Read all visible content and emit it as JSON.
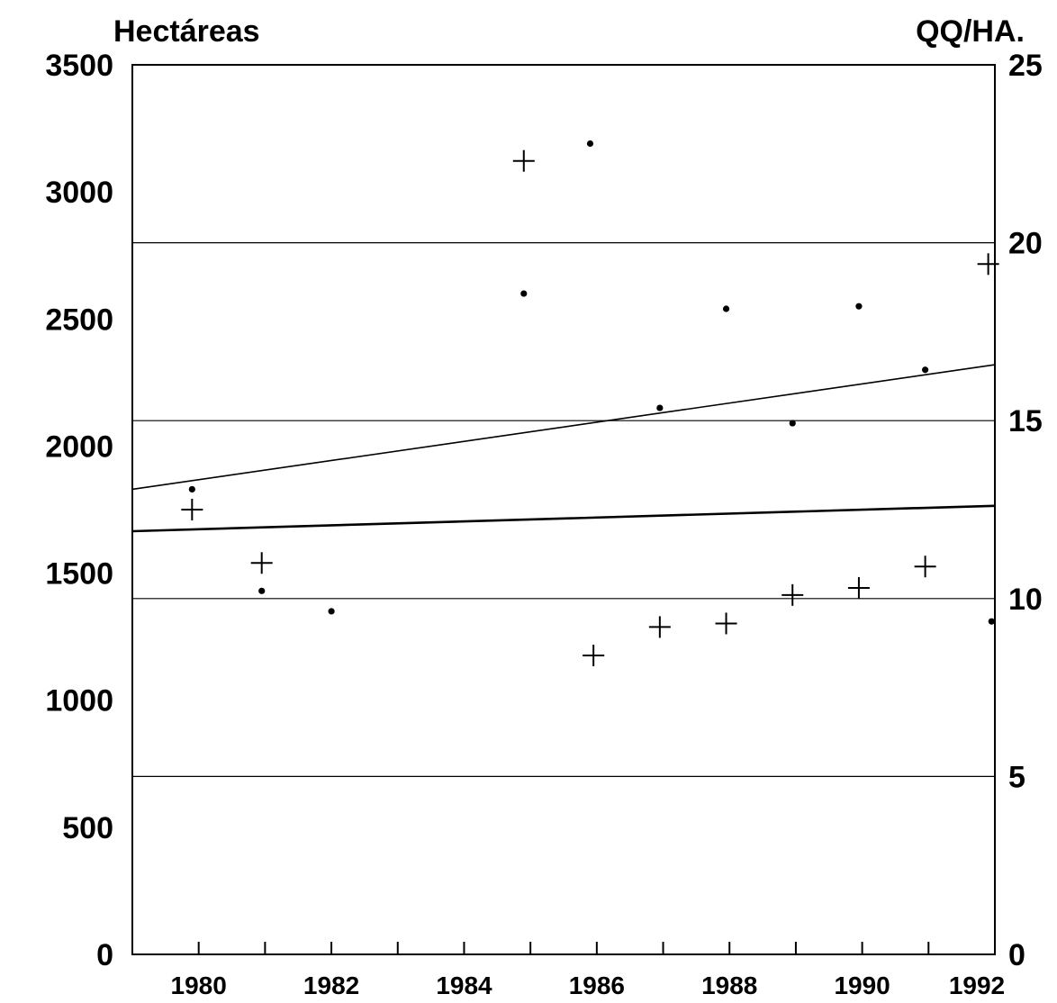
{
  "chart_data": {
    "type": "scatter",
    "left_axis_label": "Hectáreas",
    "right_axis_label": "QQ/HA.",
    "x_range": [
      1979,
      1992
    ],
    "left_ylim": [
      0,
      3500
    ],
    "right_ylim": [
      0,
      25
    ],
    "left_ticks": [
      "0",
      "500",
      "1000",
      "1500",
      "2000",
      "2500",
      "3000",
      "3500"
    ],
    "right_ticks": [
      "0",
      "5",
      "10",
      "15",
      "20",
      "25"
    ],
    "x_ticks": [
      "1980",
      "1982",
      "1984",
      "1986",
      "1988",
      "1990",
      "1992"
    ],
    "gridlines_right_axis": [
      5,
      10,
      15,
      20
    ],
    "series": [
      {
        "marker": "dot",
        "axis": "left",
        "x": [
          1979.9,
          1980.95,
          1982,
          1984.9,
          1985.9,
          1986.95,
          1987.95,
          1988.95,
          1989.95,
          1990.95,
          1991.95
        ],
        "y": [
          1830,
          1430,
          1350,
          2600,
          3190,
          2150,
          2540,
          2090,
          2550,
          2300,
          1310
        ]
      },
      {
        "marker": "plus",
        "axis": "right",
        "x": [
          1979.9,
          1980.95,
          1984.9,
          1985.95,
          1986.95,
          1987.95,
          1988.95,
          1989.95,
          1990.95,
          1991.9
        ],
        "y": [
          12.5,
          11.0,
          22.3,
          8.4,
          9.2,
          9.3,
          10.1,
          10.3,
          10.9,
          19.4
        ]
      }
    ],
    "trend_lines": [
      {
        "axis": "left",
        "x": [
          1979,
          1992
        ],
        "y": [
          1830,
          2320
        ]
      },
      {
        "axis": "left",
        "x": [
          1979,
          1992
        ],
        "y": [
          1665,
          1765
        ]
      }
    ]
  }
}
